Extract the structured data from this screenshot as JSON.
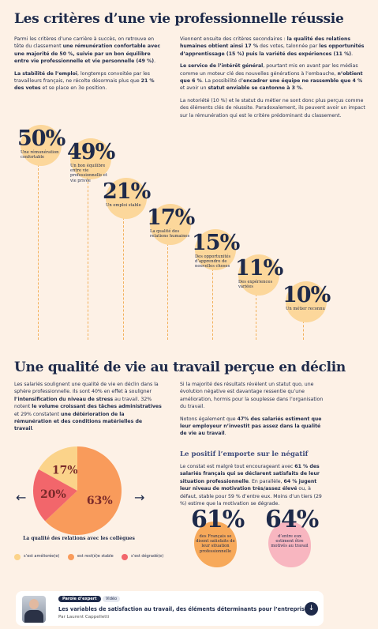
{
  "section1": {
    "title": "Les critères d’une vie professionnelle réussie",
    "left": [
      [
        "Parmi les critères d’une carrière à succès, on retrouve en tête du classement ",
        {
          "text": "une rémunération confortable avec une majorité de 50 %, suivie par un bon équilibre entre vie professionnelle et vie personnelle (49 %)",
          "bold": true
        },
        "."
      ],
      [
        {
          "text": "La stabilité de l’emploi",
          "bold": true
        },
        ", longtemps convoitée par les travailleurs français, ne récolte désormais plus que ",
        {
          "text": "21 % des votes",
          "bold": true
        },
        " et se place en 3e position."
      ]
    ],
    "right": [
      [
        "Viennent ensuite des critères secondaires : ",
        {
          "text": "la qualité des relations humaines obtient ainsi 17 %",
          "bold": true
        },
        " des votes, talonnée par ",
        {
          "text": "les opportunités d’apprentissage (15 %) puis la variété des expériences (11 %)",
          "bold": true
        },
        "."
      ],
      [
        {
          "text": "Le service de l’intérêt général",
          "bold": true
        },
        ", pourtant mis en avant par les médias comme un moteur clé des nouvelles générations à l’embauche, ",
        {
          "text": "n’obtient que 6 %",
          "bold": true
        },
        ". La possibilité d’",
        {
          "text": "encadrer une équipe ne rassemble que 4 %",
          "bold": true
        },
        " et avoir un ",
        {
          "text": "statut enviable se cantonne à 3 %",
          "bold": true
        },
        "."
      ],
      [
        "La notoriété (10 %) et le statut du métier ne sont donc plus perçus comme des éléments clés de réussite. Paradoxalement, ils peuvent avoir un impact sur la rémunération qui est le critère prédominant du classement."
      ]
    ],
    "criteria": [
      {
        "pct": "50%",
        "label": "Une rémunération confortable"
      },
      {
        "pct": "49%",
        "label": "Un bon équilibre entre vie professionnelle et vie privée"
      },
      {
        "pct": "21%",
        "label": "Un emploi stable"
      },
      {
        "pct": "17%",
        "label": "La qualité des relations humaines"
      },
      {
        "pct": "15%",
        "label": "Des opportunités d’apprendre de nouvelles choses"
      },
      {
        "pct": "11%",
        "label": "Des expériences variées"
      },
      {
        "pct": "10%",
        "label": "Un métier reconnu"
      }
    ]
  },
  "section2": {
    "title": "Une qualité de vie au travail perçue en déclin",
    "left": [
      [
        "Les salariés soulignent une qualité de vie en déclin dans la sphère professionnelle. Ils sont 40% en effet à souligner ",
        {
          "text": "l’intensification du niveau de stress",
          "bold": true
        },
        " au travail. 32% notent ",
        {
          "text": "le volume croissant des tâches administratives",
          "bold": true
        },
        " et 29% constatent ",
        {
          "text": "une détérioration de la rémunération et des conditions matérielles de travail",
          "bold": true
        },
        "."
      ]
    ],
    "right": [
      [
        "Si la majorité des résultats révèlent un statut quo, une évolution négative est davantage ressentie qu’une amélioration, hormis pour la souplesse dans l’organisation du travail."
      ],
      [
        "Notons également que ",
        {
          "text": "47% des salariés estiment que leur employeur n’investit pas assez dans la qualité de vie au travail",
          "bold": true
        },
        "."
      ]
    ],
    "subheading": "Le positif l’emporte sur le négatif",
    "right2": [
      [
        "Le constat est malgré tout encourageant avec ",
        {
          "text": "61 % des salariés français qui se déclarent satisfaits de leur situation professionnelle",
          "bold": true
        },
        ". En parallèle, ",
        {
          "text": "64 % jugent leur niveau de motivation très/assez élevé",
          "bold": true
        },
        " ou, à défaut, stable pour 59 % d’entre eux. Moins d’un tiers (29 %) estime que la motivation se dégrade."
      ]
    ],
    "pie": {
      "type": "pie",
      "caption": "La qualité des relations avec les collègues",
      "categories": [
        "s’est améliorée(e)",
        "est rest(é)e stable",
        "s’est dégradé(e)"
      ],
      "values": [
        17,
        63,
        20
      ],
      "value_labels": [
        "17%",
        "63%",
        "20%"
      ],
      "colors": [
        "#fbd38a",
        "#f99b5b",
        "#f2666b"
      ]
    },
    "stats": [
      {
        "pct": "61%",
        "label": "des Français se disent satisfaits de leur situation professionnelle",
        "color": "#f7a95a"
      },
      {
        "pct": "64%",
        "label": "d’entre eux estiment être motivés au travail",
        "color": "#f8b6c0"
      }
    ]
  },
  "card": {
    "badge": "Parole d’expert",
    "tag": "Vidéo",
    "title": "Les variables de satisfaction au travail, des éléments déterminants pour l’entreprise",
    "author": "Par Laurent Cappelletti"
  }
}
